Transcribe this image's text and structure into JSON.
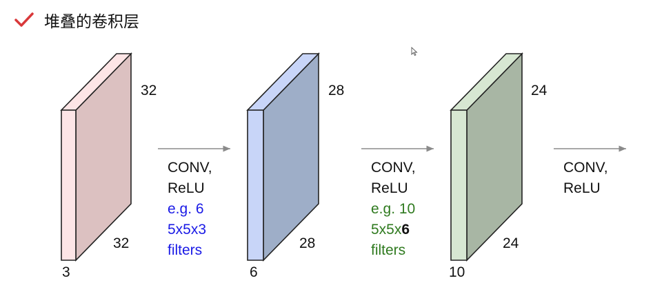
{
  "header": {
    "title": "堆叠的卷积层",
    "icon": "checkmark-icon",
    "icon_color": "#d9383a"
  },
  "colors": {
    "vol1_front": "#fde5e6",
    "vol1_back": "#dcc1c1",
    "vol2_front": "#c8d5f8",
    "vol2_back": "#9eaec8",
    "vol3_front": "#d7e7d2",
    "vol3_back": "#a8b6a4",
    "text": "#111111",
    "blue": "#1a1ae6",
    "green": "#2f7a1f",
    "arrow": "#8a8a8a"
  },
  "volumes": [
    {
      "height": "32",
      "width": "32",
      "depth": "3"
    },
    {
      "height": "28",
      "width": "28",
      "depth": "6"
    },
    {
      "height": "24",
      "width": "24",
      "depth": "10"
    }
  ],
  "steps": [
    {
      "op": "CONV,",
      "act": "ReLU",
      "eg": "e.g. 6",
      "size": "5x5x3",
      "size_bold": "",
      "unit": "filters"
    },
    {
      "op": "CONV,",
      "act": "ReLU",
      "eg": "e.g. 10",
      "size": "5x5x",
      "size_bold": "6",
      "unit": "filters"
    },
    {
      "op": "CONV,",
      "act": "ReLU"
    }
  ]
}
